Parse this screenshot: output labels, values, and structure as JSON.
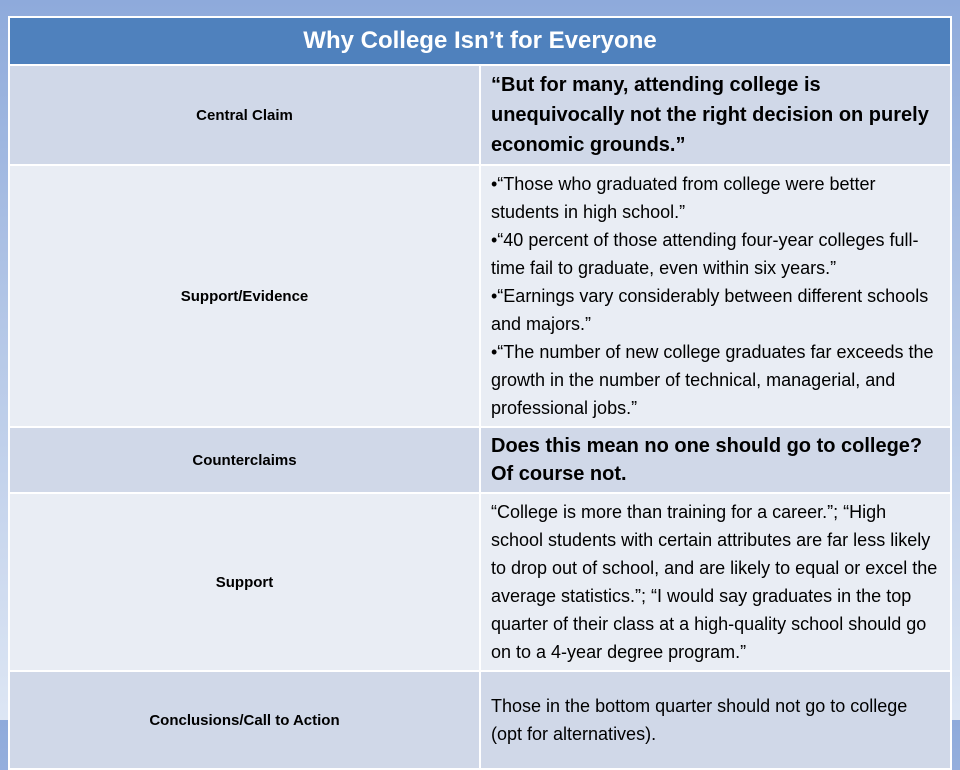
{
  "title": "Why College Isn’t for Everyone",
  "rows": [
    {
      "label": "Central Claim",
      "content": "“But for many, attending college is unequivocally not the right decision on purely economic grounds.”"
    },
    {
      "label": "Support/Evidence",
      "bullets": [
        "•“Those who graduated from college were better students in high school.”",
        "•“40 percent of those attending four-year colleges full-time fail to graduate, even within six years.”",
        "•“Earnings vary considerably between different schools and majors.”",
        "•“The number of new college graduates far exceeds the growth in the number of technical, managerial, and professional jobs.”"
      ]
    },
    {
      "label": "Counterclaims",
      "content": "Does this mean no one should go to college? Of course not."
    },
    {
      "label": "Support",
      "content": "“College is more than training for a career.”; “High school students with certain attributes are far less likely to drop out of school, and are likely to equal or excel the average statistics.”; “I would say graduates in the top quarter of their class at a high-quality school should go on to a 4-year degree program.”"
    },
    {
      "label": "Conclusions/Call  to Action",
      "content": "Those in the bottom quarter should not go to college (opt for alternatives)."
    }
  ]
}
